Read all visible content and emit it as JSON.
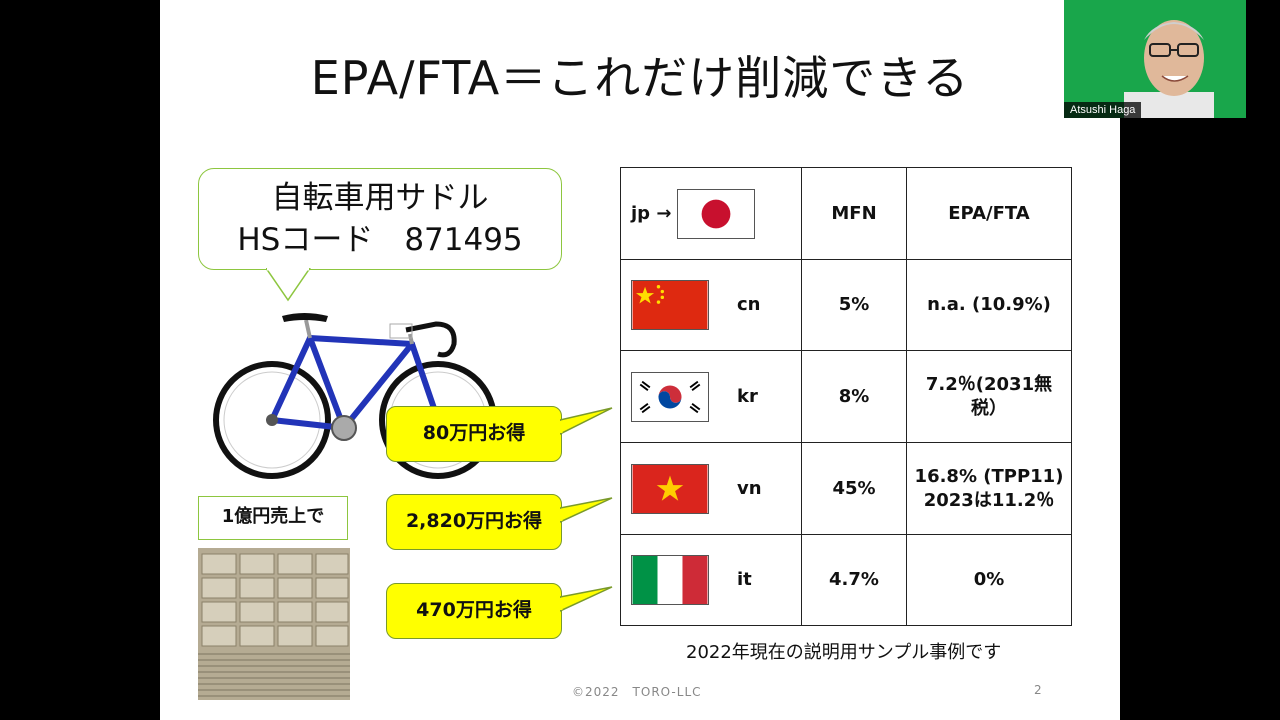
{
  "slide": {
    "title": "EPA/FTA＝これだけ削減できる",
    "product": {
      "name": "自転車用サドル",
      "hs_code": "HSコード　871495"
    },
    "sales_label": "1億円売上で",
    "savings": [
      "80万円お得",
      "2,820万円お得",
      "470万円お得"
    ],
    "table": {
      "header": {
        "origin_code": "jp →",
        "mfn": "MFN",
        "epa": "EPA/FTA"
      },
      "rows": [
        {
          "code": "cn",
          "mfn": "5%",
          "epa_line1": "n.a. (10.9%)",
          "epa_line2": "",
          "flag": "china-flag"
        },
        {
          "code": "kr",
          "mfn": "8%",
          "epa_line1": "7.2％(2031無",
          "epa_line2": "税）",
          "flag": "korea-flag"
        },
        {
          "code": "vn",
          "mfn": "45%",
          "epa_line1": "16.8% (TPP11)",
          "epa_line2": "2023は11.2％",
          "flag": "vietnam-flag"
        },
        {
          "code": "it",
          "mfn": "4.7%",
          "epa_line1": "0%",
          "epa_line2": "",
          "flag": "italy-flag"
        }
      ]
    },
    "note": "2022年現在の説明用サンプル事例です",
    "footer": "©2022　TORO-LLC",
    "page_number": "2"
  },
  "video": {
    "participant_name": "Atsushi Haga"
  },
  "colors": {
    "bubble_border": "#8dc63f",
    "callout_fill": "#ffff00",
    "video_background": "#19a64b"
  }
}
